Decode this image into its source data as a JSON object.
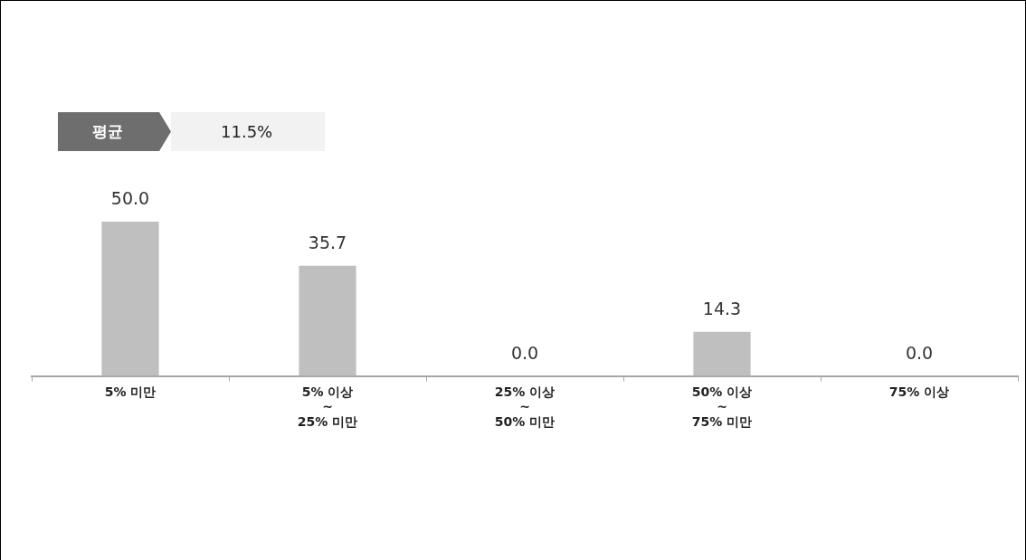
{
  "chart_data": {
    "type": "bar",
    "categories": [
      "5% 미만",
      "5% 이상\n~\n25% 미만",
      "25% 이상\n~\n50% 미만",
      "50% 이상\n~\n75% 미만",
      "75% 이상"
    ],
    "values": [
      50.0,
      35.7,
      0.0,
      14.3,
      0.0
    ],
    "value_labels": [
      "50.0",
      "35.7",
      "0.0",
      "14.3",
      "0.0"
    ],
    "color": "#bfbfbf",
    "annotations": [
      "평균",
      "11.5%"
    ],
    "grid": false,
    "legend": false
  }
}
